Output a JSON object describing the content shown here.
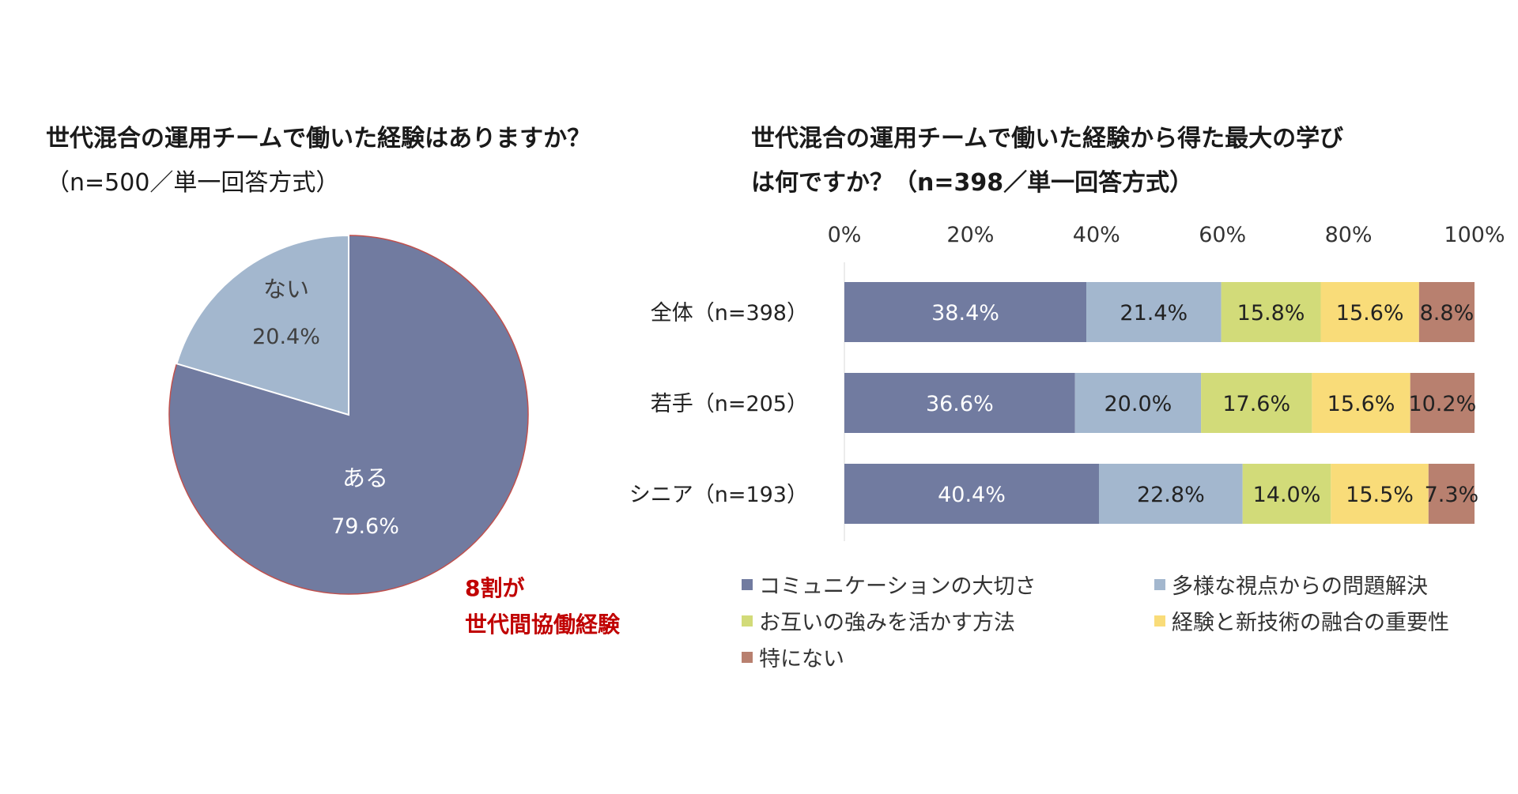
{
  "left_title": "世代混合の運用チームで働いた経験はありますか？",
  "left_subtitle": "（n=500／単一回答方式）",
  "right_title_line1": "世代混合の運用チームで働いた経験から得た最大の学び",
  "right_title_line2": "は何ですか？（n=398／単一回答方式）",
  "callout_line1": "8割が",
  "callout_line2": "世代間協働経験",
  "chart_data": [
    {
      "type": "pie",
      "slices": [
        {
          "label": "ある",
          "value": 79.6,
          "value_label": "79.6%",
          "color": "#717ba0"
        },
        {
          "label": "ない",
          "value": 20.4,
          "value_label": "20.4%",
          "color": "#a3b7ce"
        }
      ]
    },
    {
      "type": "bar",
      "orientation": "horizontal",
      "stacked": "100%",
      "xlim": [
        0,
        100
      ],
      "x_ticks": [
        "0%",
        "20%",
        "40%",
        "60%",
        "80%",
        "100%"
      ],
      "categories": [
        "全体（n=398）",
        "若手（n=205）",
        "シニア（n=193）"
      ],
      "series": [
        {
          "name": "コミュニケーションの大切さ",
          "color": "#717ba0",
          "values": [
            38.4,
            36.6,
            40.4
          ],
          "labels": [
            "38.4%",
            "36.6%",
            "40.4%"
          ]
        },
        {
          "name": "多様な視点からの問題解決",
          "color": "#a3b7ce",
          "values": [
            21.4,
            20.0,
            22.8
          ],
          "labels": [
            "21.4%",
            "20.0%",
            "22.8%"
          ]
        },
        {
          "name": "お互いの強みを活かす方法",
          "color": "#d2db79",
          "values": [
            15.8,
            17.6,
            14.0
          ],
          "labels": [
            "15.8%",
            "17.6%",
            "14.0%"
          ]
        },
        {
          "name": "経験と新技術の融合の重要性",
          "color": "#f9dc79",
          "values": [
            15.6,
            15.6,
            15.5
          ],
          "labels": [
            "15.6%",
            "15.6%",
            "15.5%"
          ]
        },
        {
          "name": "特にない",
          "color": "#b8806f",
          "values": [
            8.8,
            10.2,
            7.3
          ],
          "labels": [
            "8.8%",
            "10.2%",
            "7.3%"
          ]
        }
      ],
      "legend_position": "bottom"
    }
  ]
}
